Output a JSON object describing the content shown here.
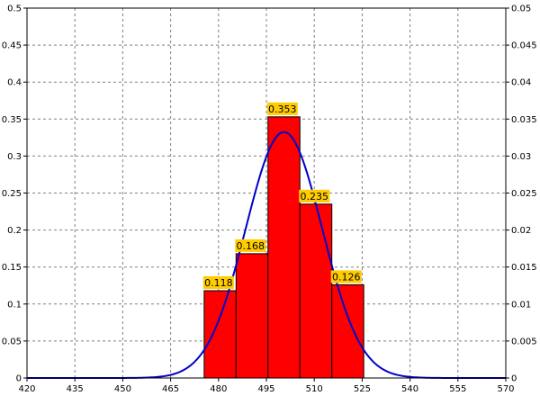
{
  "chart_data": {
    "type": "bar",
    "title": "",
    "xlabel": "",
    "ylabel": "",
    "xlim": [
      420,
      570
    ],
    "ylim": [
      0,
      0.5
    ],
    "y2lim": [
      0,
      0.05
    ],
    "grid": true,
    "x_ticks": [
      "420",
      "435",
      "450",
      "465",
      "480",
      "495",
      "510",
      "525",
      "540",
      "555",
      "570"
    ],
    "y_ticks": [
      "0",
      "0.05",
      "0.1",
      "0.15",
      "0.2",
      "0.25",
      "0.3",
      "0.35",
      "0.4",
      "0.45",
      "0.5"
    ],
    "y2_ticks": [
      "0",
      "0.005",
      "0.01",
      "0.015",
      "0.02",
      "0.025",
      "0.03",
      "0.035",
      "0.04",
      "0.045",
      "0.05"
    ],
    "bars": [
      {
        "x0": 475.5,
        "x1": 485.5,
        "value": 0.118,
        "label": "0.118"
      },
      {
        "x0": 485.5,
        "x1": 495.5,
        "value": 0.168,
        "label": "0.168"
      },
      {
        "x0": 495.5,
        "x1": 505.5,
        "value": 0.353,
        "label": "0.353"
      },
      {
        "x0": 505.5,
        "x1": 515.5,
        "value": 0.235,
        "label": "0.235"
      },
      {
        "x0": 515.5,
        "x1": 525.5,
        "value": 0.126,
        "label": "0.126"
      }
    ],
    "curve": {
      "type": "normal-density",
      "mean": 500.5,
      "sd": 12.0,
      "axis": "right"
    },
    "colors": {
      "bar_fill": "#ff0000",
      "bar_stroke": "#000000",
      "curve": "#0000cc",
      "label_bg": "#ffcc00",
      "grid": "#808080"
    }
  }
}
